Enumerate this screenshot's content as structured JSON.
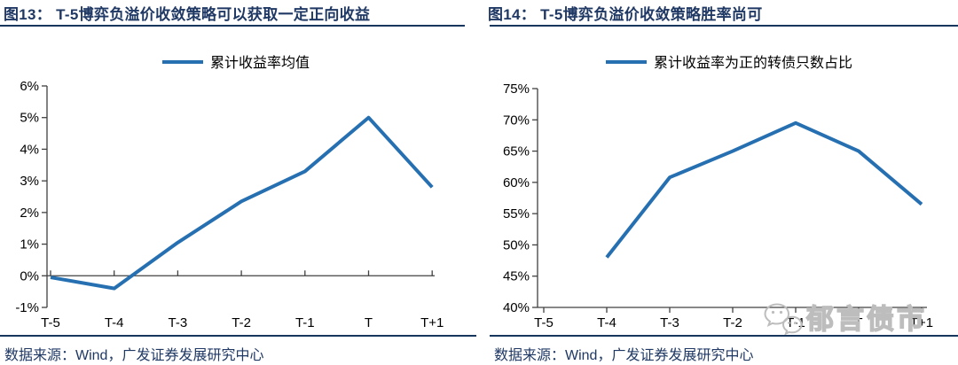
{
  "colors": {
    "line": "#2670B2",
    "navy_text": "#1F3864",
    "rule": "#17365D",
    "axis": "#404040",
    "label": "#000000",
    "watermark": "#BDBDBD"
  },
  "watermark": {
    "text": "郁言债市",
    "icon": "wechat-icon"
  },
  "figures": [
    {
      "title": "图13： T-5博弈负溢价收敛策略可以获取一定正向收益",
      "source": "数据来源：Wind，广发证券发展研究中心"
    },
    {
      "title": "图14： T-5博弈负溢价收敛策略胜率尚可",
      "source": "数据来源：Wind，广发证券发展研究中心"
    }
  ],
  "chart_data": [
    {
      "type": "line",
      "title": "图13： T-5博弈负溢价收敛策略可以获取一定正向收益",
      "legend": [
        "累计收益率均值"
      ],
      "legend_position": "top-center",
      "categories": [
        "T-5",
        "T-4",
        "T-3",
        "T-2",
        "T-1",
        "T",
        "T+1"
      ],
      "values": [
        -0.05,
        -0.4,
        1.05,
        2.35,
        3.3,
        5.0,
        2.8
      ],
      "unit": "%",
      "ylim": [
        -1,
        6
      ],
      "ytick_step": 1,
      "ytick_labels": [
        "-1%",
        "0%",
        "1%",
        "2%",
        "3%",
        "4%",
        "5%",
        "6%"
      ],
      "x_axis_cross_at": 0,
      "grid": false,
      "line_color": "#2670B2"
    },
    {
      "type": "line",
      "title": "图14： T-5博弈负溢价收敛策略胜率尚可",
      "legend": [
        "累计收益率为正的转债只数占比"
      ],
      "legend_position": "top-center",
      "categories": [
        "T-5",
        "T-4",
        "T-3",
        "T-2",
        "T-1",
        "T",
        "T+1"
      ],
      "values": [
        null,
        48,
        60.8,
        65,
        69.5,
        65,
        56.5
      ],
      "unit": "%",
      "ylim": [
        40,
        75
      ],
      "ytick_step": 5,
      "ytick_labels": [
        "40%",
        "45%",
        "50%",
        "55%",
        "60%",
        "65%",
        "70%",
        "75%"
      ],
      "x_axis_cross_at": 40,
      "grid": false,
      "line_color": "#2670B2"
    }
  ]
}
